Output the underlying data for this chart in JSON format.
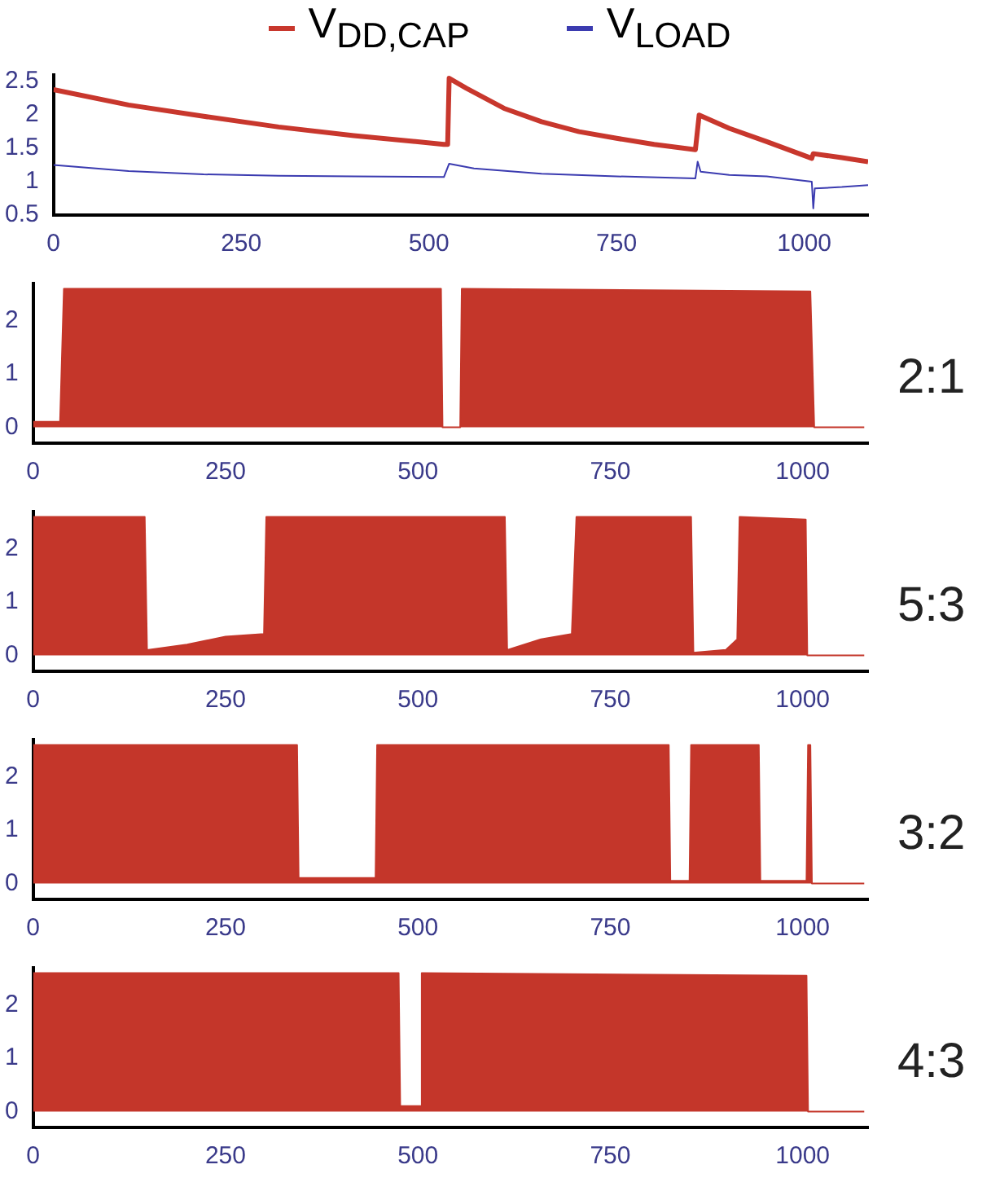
{
  "chart_data": [
    {
      "type": "line",
      "xlim": [
        0,
        1085
      ],
      "xticks": [
        0,
        250,
        500,
        750,
        1000
      ],
      "ylim": [
        0.5,
        2.6
      ],
      "yticks": [
        0.5,
        1,
        1.5,
        2,
        2.5
      ],
      "legend": "top",
      "series": [
        {
          "name": "V$_{DD,CAP}$",
          "color": "#c8372d",
          "x": [
            0,
            100,
            200,
            300,
            400,
            520,
            525,
            527,
            550,
            600,
            650,
            700,
            750,
            800,
            855,
            860,
            900,
            950,
            1010,
            1012,
            1050,
            1085
          ],
          "values": [
            2.38,
            2.15,
            1.98,
            1.82,
            1.69,
            1.56,
            1.56,
            2.55,
            2.4,
            2.1,
            1.9,
            1.75,
            1.65,
            1.56,
            1.48,
            2.0,
            1.8,
            1.6,
            1.35,
            1.42,
            1.36,
            1.3
          ]
        },
        {
          "name": "V$_{LOAD}$",
          "color": "#3b3bb0",
          "x": [
            0,
            100,
            200,
            300,
            400,
            520,
            527,
            560,
            650,
            750,
            855,
            858,
            862,
            900,
            950,
            1010,
            1012,
            1014,
            1050,
            1085
          ],
          "values": [
            1.25,
            1.16,
            1.11,
            1.09,
            1.08,
            1.07,
            1.27,
            1.2,
            1.12,
            1.08,
            1.05,
            1.3,
            1.15,
            1.1,
            1.08,
            1.0,
            0.6,
            0.9,
            0.92,
            0.95
          ]
        }
      ]
    },
    {
      "type": "area",
      "xlim": [
        0,
        1085
      ],
      "xticks": [
        0,
        250,
        500,
        750,
        1000
      ],
      "ylim": [
        -0.3,
        2.7
      ],
      "yticks": [
        0,
        1,
        2
      ],
      "annotations": [
        "2:1"
      ],
      "series": [
        {
          "color": "#c4362a",
          "x": [
            0,
            35,
            40,
            530,
            532,
            555,
            557,
            1010,
            1015,
            1080
          ],
          "values": [
            0.1,
            0.1,
            2.6,
            2.6,
            0.0,
            0.0,
            2.6,
            2.55,
            0.0,
            0.0
          ]
        }
      ]
    },
    {
      "type": "area",
      "xlim": [
        0,
        1085
      ],
      "xticks": [
        0,
        250,
        500,
        750,
        1000
      ],
      "ylim": [
        -0.3,
        2.7
      ],
      "yticks": [
        0,
        1,
        2
      ],
      "annotations": [
        "5:3"
      ],
      "series": [
        {
          "color": "#c4362a",
          "x": [
            0,
            145,
            148,
            200,
            250,
            300,
            303,
            613,
            616,
            660,
            700,
            706,
            855,
            858,
            900,
            915,
            918,
            1004,
            1006,
            1080
          ],
          "values": [
            2.6,
            2.6,
            0.1,
            0.2,
            0.35,
            0.4,
            2.6,
            2.6,
            0.1,
            0.3,
            0.4,
            2.6,
            2.6,
            0.05,
            0.1,
            0.3,
            2.6,
            2.55,
            0.0,
            0.0
          ]
        }
      ]
    },
    {
      "type": "area",
      "xlim": [
        0,
        1085
      ],
      "xticks": [
        0,
        250,
        500,
        750,
        1000
      ],
      "ylim": [
        -0.3,
        2.7
      ],
      "yticks": [
        0,
        1,
        2
      ],
      "annotations": [
        "3:2"
      ],
      "series": [
        {
          "color": "#c4362a",
          "x": [
            0,
            343,
            345,
            445,
            447,
            826,
            828,
            853,
            855,
            943,
            945,
            1005,
            1007,
            1010,
            1012,
            1080
          ],
          "values": [
            2.6,
            2.6,
            0.1,
            0.1,
            2.6,
            2.6,
            0.05,
            0.05,
            2.6,
            2.6,
            0.05,
            0.05,
            2.6,
            2.6,
            0.0,
            0.0
          ]
        }
      ]
    },
    {
      "type": "area",
      "xlim": [
        0,
        1085
      ],
      "xticks": [
        0,
        250,
        500,
        750,
        1000
      ],
      "ylim": [
        -0.3,
        2.7
      ],
      "yticks": [
        0,
        1,
        2
      ],
      "annotations": [
        "4:3"
      ],
      "series": [
        {
          "color": "#c4362a",
          "x": [
            0,
            475,
            477,
            503,
            505,
            1005,
            1007,
            1080
          ],
          "values": [
            2.6,
            2.6,
            0.1,
            0.1,
            2.6,
            2.55,
            0.0,
            0.0
          ]
        }
      ]
    }
  ]
}
